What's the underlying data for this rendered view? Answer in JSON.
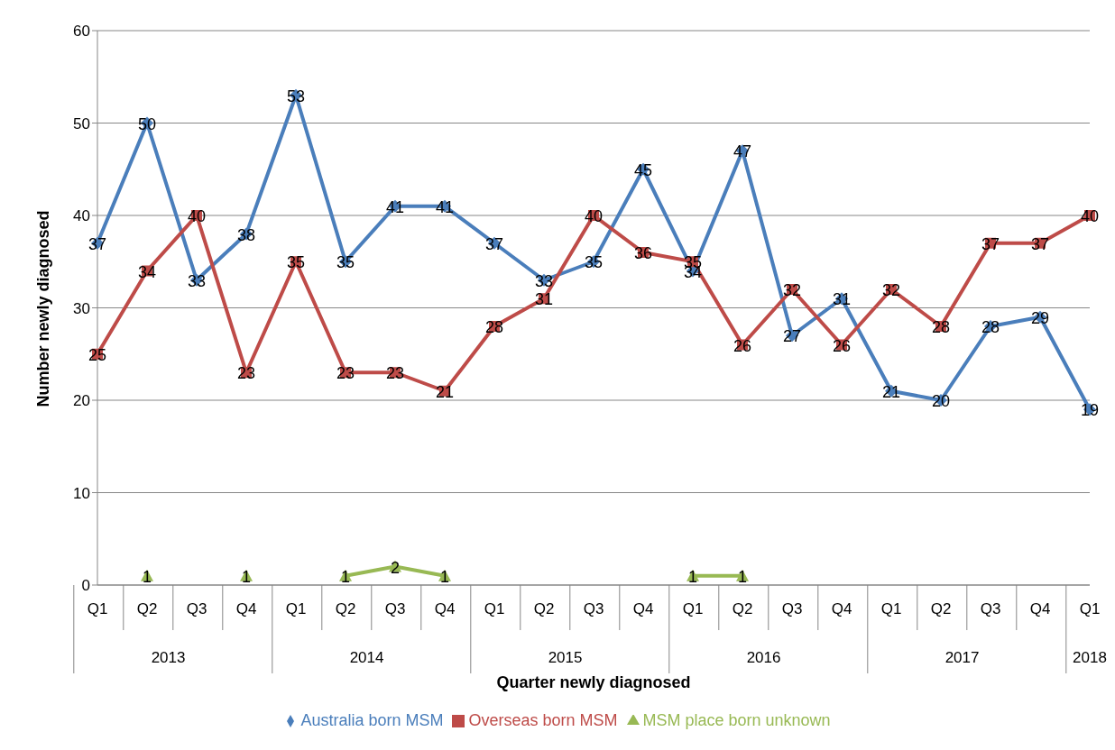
{
  "chart_data": {
    "type": "line",
    "xlabel": "Quarter newly diagnosed",
    "ylabel": "Number newly diagnosed",
    "categories": [
      "Q1",
      "Q2",
      "Q3",
      "Q4",
      "Q1",
      "Q2",
      "Q3",
      "Q4",
      "Q1",
      "Q2",
      "Q3",
      "Q4",
      "Q1",
      "Q2",
      "Q3",
      "Q4",
      "Q1",
      "Q2",
      "Q3",
      "Q4",
      "Q1"
    ],
    "annotations": [
      "2013",
      "2014",
      "2015",
      "2016",
      "2017",
      "2018"
    ],
    "series": [
      {
        "name": "Australia born MSM",
        "color": "#4a7ebb",
        "marker": "diamond",
        "values": [
          37,
          50,
          33,
          38,
          53,
          35,
          41,
          41,
          37,
          33,
          35,
          45,
          34,
          47,
          27,
          31,
          21,
          20,
          28,
          29,
          19
        ]
      },
      {
        "name": "Overseas born MSM",
        "color": "#be4b48",
        "marker": "square",
        "values": [
          25,
          34,
          40,
          23,
          35,
          23,
          23,
          21,
          28,
          31,
          40,
          36,
          35,
          26,
          32,
          26,
          32,
          28,
          37,
          37,
          40
        ]
      },
      {
        "name": "MSM place born unknown",
        "color": "#98b954",
        "marker": "triangle",
        "values": [
          null,
          1,
          null,
          1,
          null,
          1,
          2,
          1,
          null,
          null,
          null,
          null,
          1,
          1,
          null,
          null,
          null,
          null,
          null,
          null,
          null
        ]
      }
    ],
    "ylim": [
      0,
      60
    ],
    "yticks": [
      0,
      10,
      20,
      30,
      40,
      50,
      60
    ],
    "grid": "y",
    "legend": "bottom",
    "data_labels": true
  }
}
